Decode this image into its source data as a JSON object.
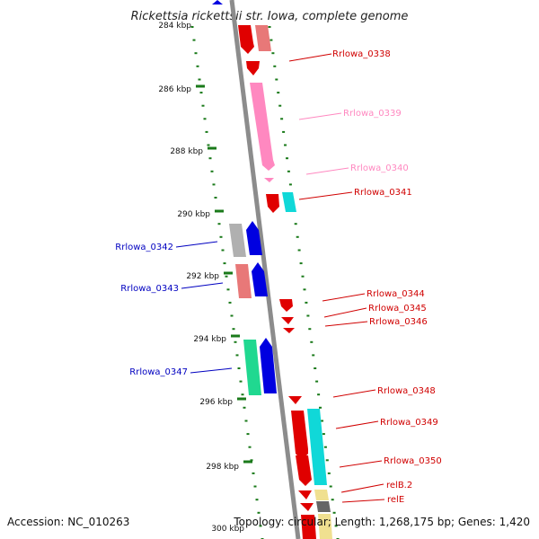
{
  "title": "Rickettsia rickettsii str. Iowa, complete genome",
  "accession": "Accession: NC_010263",
  "summary": "Topology: circular; Length: 1,268,175 bp; Genes: 1,420",
  "scale_labels": [
    "284 kbp",
    "286 kbp",
    "288 kbp",
    "290 kbp",
    "292 kbp",
    "294 kbp",
    "296 kbp",
    "298 kbp",
    "300 kbp"
  ],
  "colors": {
    "backbone": "#8c8c8c",
    "tick": "#1a7a1a",
    "red": "#e00000",
    "pink": "#ff88c0",
    "salmon": "#e87878",
    "cyan": "#10d8d8",
    "blue": "#0000e0",
    "gray": "#b0b0b0",
    "green": "#20d890",
    "yellow": "#f0e090",
    "dark": "#666666"
  },
  "gene_labels": [
    {
      "text": "Rrlowa_0338",
      "color": "#d00000"
    },
    {
      "text": "Rrlowa_0339",
      "color": "#ff88c0"
    },
    {
      "text": "Rrlowa_0340",
      "color": "#ff88c0"
    },
    {
      "text": "Rrlowa_0341",
      "color": "#d00000"
    },
    {
      "text": "Rrlowa_0342",
      "color": "#0000c0"
    },
    {
      "text": "Rrlowa_0343",
      "color": "#0000c0"
    },
    {
      "text": "Rrlowa_0344",
      "color": "#d00000"
    },
    {
      "text": "Rrlowa_0345",
      "color": "#d00000"
    },
    {
      "text": "Rrlowa_0346",
      "color": "#d00000"
    },
    {
      "text": "Rrlowa_0347",
      "color": "#0000c0"
    },
    {
      "text": "Rrlowa_0348",
      "color": "#d00000"
    },
    {
      "text": "Rrlowa_0349",
      "color": "#d00000"
    },
    {
      "text": "Rrlowa_0350",
      "color": "#d00000"
    },
    {
      "text": "relB.2",
      "color": "#d00000"
    },
    {
      "text": "relE",
      "color": "#d00000"
    }
  ]
}
